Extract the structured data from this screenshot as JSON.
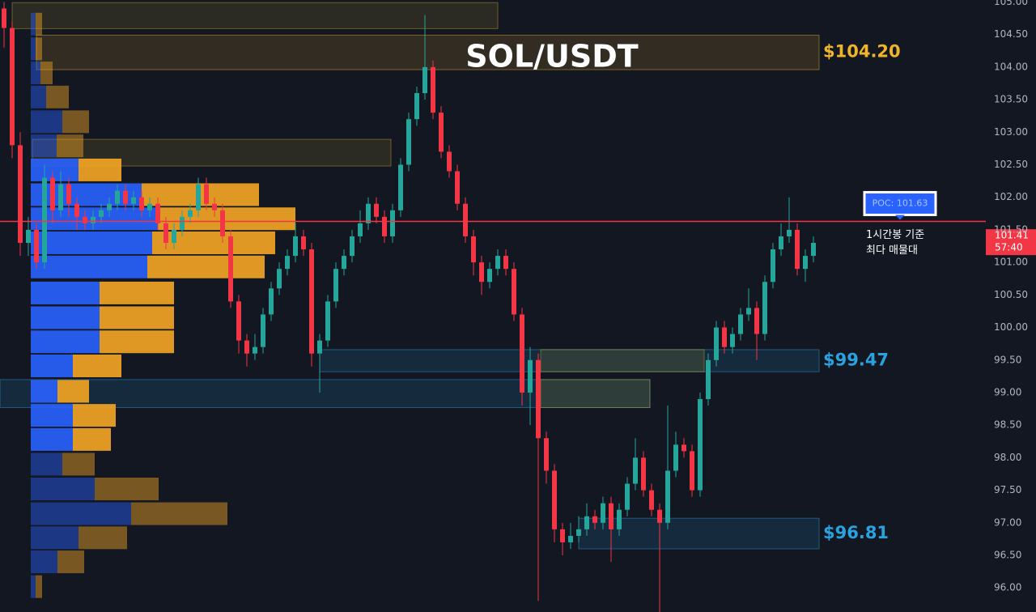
{
  "chart_data": {
    "type": "candlestick",
    "title": "SOL/USDT",
    "ylim": [
      95.63,
      105.03
    ],
    "yticks": [
      {
        "value": 96,
        "label": "96.00"
      },
      {
        "value": 96.5,
        "label": "96.50"
      },
      {
        "value": 97,
        "label": "97.00"
      },
      {
        "value": 97.5,
        "label": "97.50"
      },
      {
        "value": 98,
        "label": "98.00"
      },
      {
        "value": 98.5,
        "label": "98.50"
      },
      {
        "value": 99,
        "label": "99.00"
      },
      {
        "value": 99.5,
        "label": "99.50"
      },
      {
        "value": 100,
        "label": "100.00"
      },
      {
        "value": 100.5,
        "label": "100.50"
      },
      {
        "value": 101,
        "label": "101.00"
      },
      {
        "value": 101.5,
        "label": "101.50"
      },
      {
        "value": 102,
        "label": "102.00"
      },
      {
        "value": 102.5,
        "label": "102.50"
      },
      {
        "value": 103,
        "label": "103.00"
      },
      {
        "value": 103.5,
        "label": "103.50"
      },
      {
        "value": 104,
        "label": "104.00"
      },
      {
        "value": 104.5,
        "label": "104.50"
      },
      {
        "value": 105,
        "label": "105.00"
      }
    ],
    "grid": false,
    "up_color": "#26a69a",
    "down_color": "#f23645",
    "candles": [
      [
        104.9,
        105.0,
        104.3,
        104.6
      ],
      [
        104.6,
        104.7,
        102.6,
        102.8
      ],
      [
        102.8,
        103.0,
        101.1,
        101.3
      ],
      [
        101.3,
        101.7,
        101.1,
        101.5
      ],
      [
        101.5,
        101.6,
        100.9,
        101.0
      ],
      [
        101.0,
        102.5,
        100.9,
        102.3
      ],
      [
        102.3,
        102.4,
        101.6,
        101.8
      ],
      [
        101.8,
        102.4,
        101.7,
        102.2
      ],
      [
        102.2,
        102.3,
        101.7,
        101.9
      ],
      [
        101.9,
        102.0,
        101.5,
        101.7
      ],
      [
        101.7,
        101.8,
        101.5,
        101.6
      ],
      [
        101.6,
        101.8,
        101.5,
        101.7
      ],
      [
        101.7,
        101.9,
        101.6,
        101.8
      ],
      [
        101.8,
        102.0,
        101.7,
        101.9
      ],
      [
        101.9,
        102.2,
        101.8,
        102.1
      ],
      [
        102.1,
        102.2,
        101.8,
        101.9
      ],
      [
        101.9,
        102.1,
        101.8,
        102.0
      ],
      [
        102.0,
        102.1,
        101.7,
        101.8
      ],
      [
        101.8,
        102.0,
        101.7,
        101.9
      ],
      [
        101.9,
        102.0,
        101.5,
        101.6
      ],
      [
        101.6,
        101.7,
        101.2,
        101.3
      ],
      [
        101.3,
        101.6,
        101.2,
        101.5
      ],
      [
        101.5,
        101.8,
        101.4,
        101.7
      ],
      [
        101.7,
        101.9,
        101.6,
        101.8
      ],
      [
        101.8,
        102.3,
        101.7,
        102.2
      ],
      [
        102.2,
        102.3,
        101.8,
        101.9
      ],
      [
        101.9,
        102.0,
        101.7,
        101.8
      ],
      [
        101.8,
        101.9,
        101.3,
        101.4
      ],
      [
        101.4,
        101.5,
        100.3,
        100.4
      ],
      [
        100.4,
        100.5,
        99.6,
        99.8
      ],
      [
        99.8,
        99.9,
        99.4,
        99.6
      ],
      [
        99.6,
        99.9,
        99.5,
        99.7
      ],
      [
        99.7,
        100.3,
        99.6,
        100.2
      ],
      [
        100.2,
        100.7,
        100.1,
        100.6
      ],
      [
        100.6,
        101.0,
        100.5,
        100.9
      ],
      [
        100.9,
        101.2,
        100.8,
        101.1
      ],
      [
        101.1,
        101.6,
        101.0,
        101.4
      ],
      [
        101.4,
        101.5,
        101.1,
        101.2
      ],
      [
        101.2,
        101.3,
        99.4,
        99.6
      ],
      [
        99.6,
        99.9,
        99.0,
        99.8
      ],
      [
        99.8,
        100.5,
        99.7,
        100.4
      ],
      [
        100.4,
        101.0,
        100.3,
        100.9
      ],
      [
        100.9,
        101.2,
        100.8,
        101.1
      ],
      [
        101.1,
        101.5,
        101.0,
        101.4
      ],
      [
        101.4,
        101.8,
        101.3,
        101.6
      ],
      [
        101.6,
        102.0,
        101.5,
        101.9
      ],
      [
        101.9,
        102.0,
        101.6,
        101.7
      ],
      [
        101.7,
        101.8,
        101.3,
        101.4
      ],
      [
        101.4,
        101.9,
        101.3,
        101.8
      ],
      [
        101.8,
        102.6,
        101.7,
        102.5
      ],
      [
        102.5,
        103.3,
        102.4,
        103.2
      ],
      [
        103.2,
        103.7,
        103.1,
        103.6
      ],
      [
        103.6,
        104.8,
        103.5,
        104.0
      ],
      [
        104.0,
        104.1,
        103.2,
        103.3
      ],
      [
        103.3,
        103.4,
        102.6,
        102.7
      ],
      [
        102.7,
        102.8,
        102.3,
        102.4
      ],
      [
        102.4,
        102.5,
        101.8,
        101.9
      ],
      [
        101.9,
        102.0,
        101.3,
        101.4
      ],
      [
        101.4,
        101.5,
        100.8,
        101.0
      ],
      [
        101.0,
        101.1,
        100.5,
        100.7
      ],
      [
        100.7,
        101.0,
        100.6,
        100.9
      ],
      [
        100.9,
        101.2,
        100.8,
        101.1
      ],
      [
        101.1,
        101.2,
        100.8,
        100.9
      ],
      [
        100.9,
        101.0,
        100.1,
        100.2
      ],
      [
        100.2,
        100.3,
        98.8,
        99.0
      ],
      [
        99.0,
        99.7,
        98.5,
        99.5
      ],
      [
        99.5,
        99.6,
        95.8,
        98.3
      ],
      [
        98.3,
        98.4,
        97.6,
        97.8
      ],
      [
        97.8,
        97.9,
        96.7,
        96.9
      ],
      [
        96.9,
        97.0,
        96.5,
        96.7
      ],
      [
        96.7,
        97.0,
        96.6,
        96.8
      ],
      [
        96.8,
        97.1,
        96.7,
        96.9
      ],
      [
        96.9,
        97.3,
        96.8,
        97.1
      ],
      [
        97.1,
        97.2,
        96.9,
        97.0
      ],
      [
        97.0,
        97.4,
        96.9,
        97.3
      ],
      [
        97.3,
        97.4,
        96.4,
        96.9
      ],
      [
        96.9,
        97.3,
        96.8,
        97.2
      ],
      [
        97.2,
        97.7,
        97.1,
        97.6
      ],
      [
        97.6,
        98.3,
        97.5,
        98.0
      ],
      [
        98.0,
        98.1,
        97.4,
        97.5
      ],
      [
        97.5,
        97.6,
        97.1,
        97.2
      ],
      [
        97.2,
        97.3,
        95.6,
        97.0
      ],
      [
        97.0,
        98.8,
        96.9,
        97.8
      ],
      [
        97.8,
        98.4,
        97.7,
        98.2
      ],
      [
        98.2,
        98.3,
        98.0,
        98.1
      ],
      [
        98.1,
        98.2,
        97.4,
        97.5
      ],
      [
        97.5,
        99.0,
        97.4,
        98.9
      ],
      [
        98.9,
        99.6,
        98.8,
        99.5
      ],
      [
        99.5,
        100.1,
        99.4,
        100.0
      ],
      [
        100.0,
        100.1,
        99.6,
        99.7
      ],
      [
        99.7,
        100.0,
        99.6,
        99.9
      ],
      [
        99.9,
        100.3,
        99.8,
        100.2
      ],
      [
        100.2,
        100.6,
        100.1,
        100.3
      ],
      [
        100.3,
        100.4,
        99.5,
        99.9
      ],
      [
        99.9,
        100.8,
        99.8,
        100.7
      ],
      [
        100.7,
        101.3,
        100.6,
        101.2
      ],
      [
        101.2,
        101.6,
        101.1,
        101.4
      ],
      [
        101.4,
        102.0,
        101.3,
        101.5
      ],
      [
        101.5,
        101.6,
        100.8,
        100.9
      ],
      [
        100.9,
        101.2,
        100.7,
        101.1
      ],
      [
        101.1,
        101.4,
        101.0,
        101.3
      ]
    ],
    "zones": [
      {
        "low": 104.59,
        "high": 104.99,
        "from": 1,
        "to": 61,
        "color": "#c8a82a"
      },
      {
        "low": 103.96,
        "high": 104.49,
        "from": 4,
        "to": 100.7,
        "color": "#f0b429",
        "label": "$104.20"
      },
      {
        "low": 102.48,
        "high": 102.89,
        "from": 3.5,
        "to": 47.8,
        "color": "#c8a82a"
      },
      {
        "low": 99.32,
        "high": 99.66,
        "from": 39,
        "to": 100.7,
        "color": "#29a3e0",
        "label": "$99.47"
      },
      {
        "low": 99.32,
        "high": 99.66,
        "from": 66.3,
        "to": 86.5,
        "color": "#c8a82a"
      },
      {
        "low": 98.77,
        "high": 99.2,
        "from": -0.5,
        "to": 79.8,
        "color": "#29a3e0"
      },
      {
        "low": 98.77,
        "high": 99.2,
        "from": 66.3,
        "to": 79.8,
        "color": "#c8a82a"
      },
      {
        "low": 96.6,
        "high": 97.07,
        "from": 71,
        "to": 100.7,
        "color": "#29a3e0",
        "label": "$96.81"
      }
    ],
    "volume_profile": {
      "buy_color": "#2962ff",
      "sell_color": "#f5a623",
      "value_area": [
        98.1,
        102.6
      ],
      "prices": [
        104.66,
        104.28,
        103.91,
        103.54,
        103.16,
        102.79,
        102.42,
        102.04,
        101.67,
        101.3,
        100.93,
        100.53,
        100.15,
        99.78,
        99.41,
        99.02,
        98.65,
        98.28,
        97.9,
        97.52,
        97.14,
        96.77,
        96.4,
        96.02
      ],
      "buy": [
        6,
        6,
        12,
        19,
        39,
        32,
        59,
        137,
        157,
        150,
        144,
        85,
        85,
        85,
        52,
        33,
        52,
        52,
        39,
        79,
        124,
        59,
        33,
        6
      ],
      "sell": [
        8,
        8,
        15,
        28,
        33,
        33,
        53,
        145,
        170,
        152,
        145,
        92,
        92,
        92,
        60,
        39,
        53,
        47,
        40,
        79,
        119,
        60,
        33,
        8
      ]
    },
    "poc": {
      "label": "POC: 101.63",
      "value": 101.63,
      "color": "#f23645"
    },
    "annotation": [
      "1시간봉 기준",
      "최다 매물대"
    ],
    "last_price": {
      "value": 101.41,
      "label": "101.41",
      "countdown": "57:40"
    }
  }
}
